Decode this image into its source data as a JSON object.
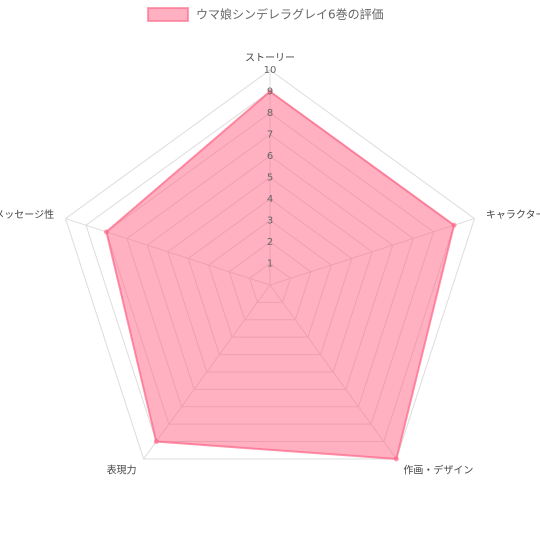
{
  "chart_data": {
    "type": "radar",
    "categories": [
      "ストーリー",
      "キャラクター",
      "作画・デザイン",
      "表現力",
      "メッセージ性"
    ],
    "series": [
      {
        "name": "ウマ娘シンデレラグレイ6巻の評価",
        "color": "#ff6384",
        "fill": "rgba(255, 99, 132, 0.5)",
        "values": [
          9,
          9,
          10,
          9,
          8
        ]
      }
    ],
    "rlim": [
      0,
      10
    ],
    "rticks": [
      1,
      2,
      3,
      4,
      5,
      6,
      7,
      8,
      9,
      10
    ],
    "grid": true,
    "legend": "top"
  }
}
